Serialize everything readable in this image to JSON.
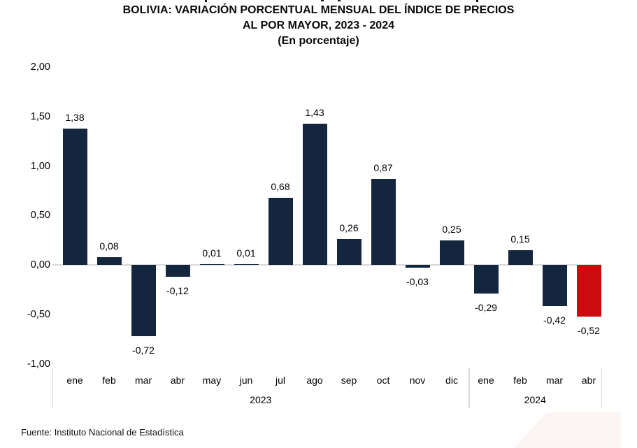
{
  "title": {
    "line1": "BOLIVIA: VARIACIÓN PORCENTUAL MENSUAL DEL ÍNDICE DE PRECIOS",
    "line2": "AL POR MAYOR, 2023 - 2024",
    "line3": "(En porcentaje)"
  },
  "source": "Fuente: Instituto Nacional de Estadística",
  "colors": {
    "bar": "#14263e",
    "highlight_bar": "#c90d0d",
    "axis_line": "#d9d9d9",
    "corner_decoration": "#faf5f3"
  },
  "chart_data": {
    "type": "bar",
    "title": "BOLIVIA: VARIACIÓN PORCENTUAL MENSUAL DEL ÍNDICE DE PRECIOS AL POR MAYOR, 2023 - 2024 (En porcentaje)",
    "xlabel": "",
    "ylabel": "",
    "categories": [
      "ene",
      "feb",
      "mar",
      "abr",
      "may",
      "jun",
      "jul",
      "ago",
      "sep",
      "oct",
      "nov",
      "dic",
      "ene",
      "feb",
      "mar",
      "abr"
    ],
    "values": [
      1.38,
      0.08,
      -0.72,
      -0.12,
      0.01,
      0.01,
      0.68,
      1.43,
      0.26,
      0.87,
      -0.03,
      0.25,
      -0.29,
      0.15,
      -0.42,
      -0.52
    ],
    "value_labels": [
      "1,38",
      "0,08",
      "-0,72",
      "-0,12",
      "0,01",
      "0,01",
      "0,68",
      "1,43",
      "0,26",
      "0,87",
      "-0,03",
      "0,25",
      "-0,29",
      "0,15",
      "-0,42",
      "-0,52"
    ],
    "year_groups": [
      {
        "label": "2023",
        "count": 12
      },
      {
        "label": "2024",
        "count": 4
      }
    ],
    "yticks": {
      "values": [
        2.0,
        1.5,
        1.0,
        0.5,
        0.0,
        -0.5,
        -1.0
      ],
      "labels": [
        "2,00",
        "1,50",
        "1,00",
        "0,50",
        "0,00",
        "-0,50",
        "-1,00"
      ]
    },
    "ylim": [
      -1.0,
      2.0
    ],
    "grid": false,
    "legend": false,
    "highlight_index": 15
  }
}
